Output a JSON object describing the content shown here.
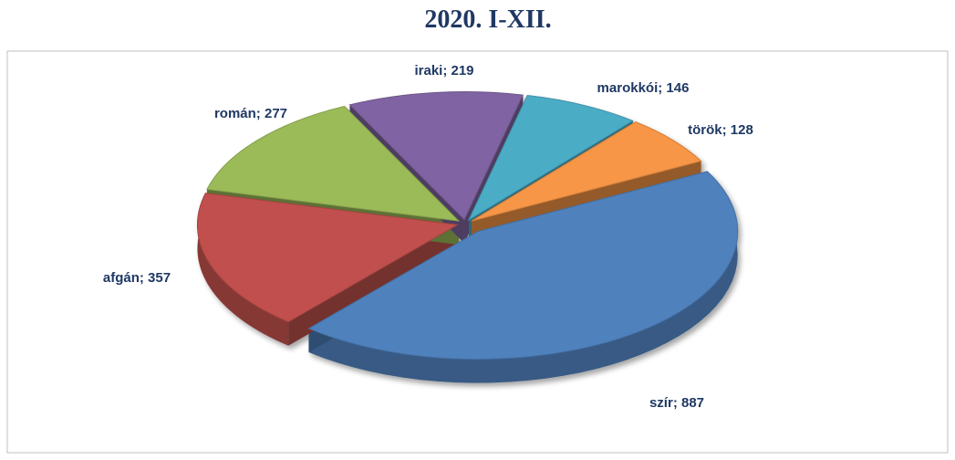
{
  "chart_data": {
    "type": "pie",
    "title": "2020. I-XII.",
    "values": [
      887,
      357,
      277,
      219,
      146,
      128
    ],
    "value_labels": [
      "szír; 887",
      "afgán; 357",
      "román; 277",
      "iraki; 219",
      "marokkói; 146",
      "török; 128"
    ],
    "colors": [
      "#4f81bd",
      "#c0504d",
      "#9bbb59",
      "#8064a2",
      "#4bacc6",
      "#f79646"
    ]
  }
}
